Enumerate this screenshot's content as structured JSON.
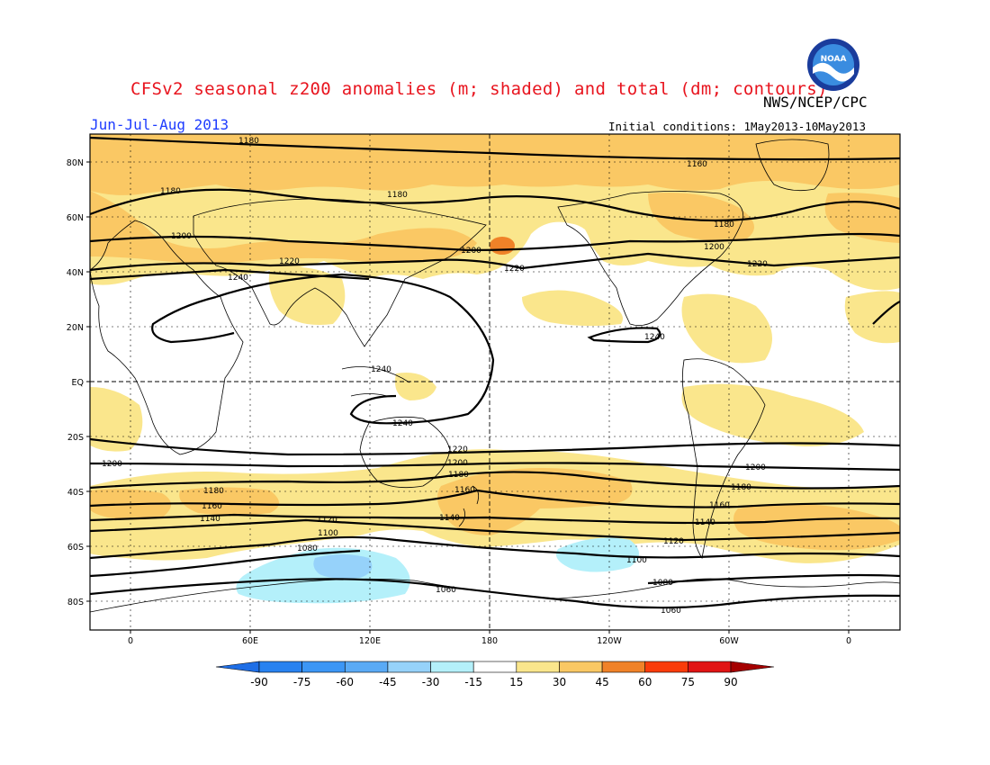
{
  "header": {
    "title": "CFSv2 seasonal z200 anomalies (m; shaded) and total (dm; contours)",
    "agency": "NWS/NCEP/CPC",
    "season": "Jun-Jul-Aug 2013",
    "initial_conditions": "Initial conditions: 1May2013-10May2013",
    "logo_text": "NOAA"
  },
  "map": {
    "lat_labels": [
      "80N",
      "60N",
      "40N",
      "20N",
      "EQ",
      "20S",
      "40S",
      "60S",
      "80S"
    ],
    "lon_labels": [
      "0",
      "60E",
      "120E",
      "180",
      "120W",
      "60W",
      "0"
    ],
    "contour_labels": [
      "1180",
      "1160",
      "1180",
      "1180",
      "1180",
      "1200",
      "1200",
      "1200",
      "1220",
      "1220",
      "1220",
      "1240",
      "1240",
      "1240",
      "1240",
      "1220",
      "1200",
      "1200",
      "1200",
      "1180",
      "1180",
      "1180",
      "1160",
      "1160",
      "1160",
      "1140",
      "1140",
      "1140",
      "1120",
      "1120",
      "1100",
      "1100",
      "1080",
      "1080",
      "1060",
      "1060"
    ]
  },
  "colorbar": {
    "labels": [
      "-90",
      "-75",
      "-60",
      "-45",
      "-30",
      "-15",
      "15",
      "30",
      "45",
      "60",
      "75",
      "90"
    ],
    "colors": [
      "#1e6ee6",
      "#2882f0",
      "#3c96f5",
      "#5aaaf5",
      "#96d2fa",
      "#b4f0fa",
      "#ffffff",
      "#fae68c",
      "#fac864",
      "#f08228",
      "#fa3c0a",
      "#e11414",
      "#a50000"
    ]
  },
  "contours": {
    "color": "#000000"
  }
}
